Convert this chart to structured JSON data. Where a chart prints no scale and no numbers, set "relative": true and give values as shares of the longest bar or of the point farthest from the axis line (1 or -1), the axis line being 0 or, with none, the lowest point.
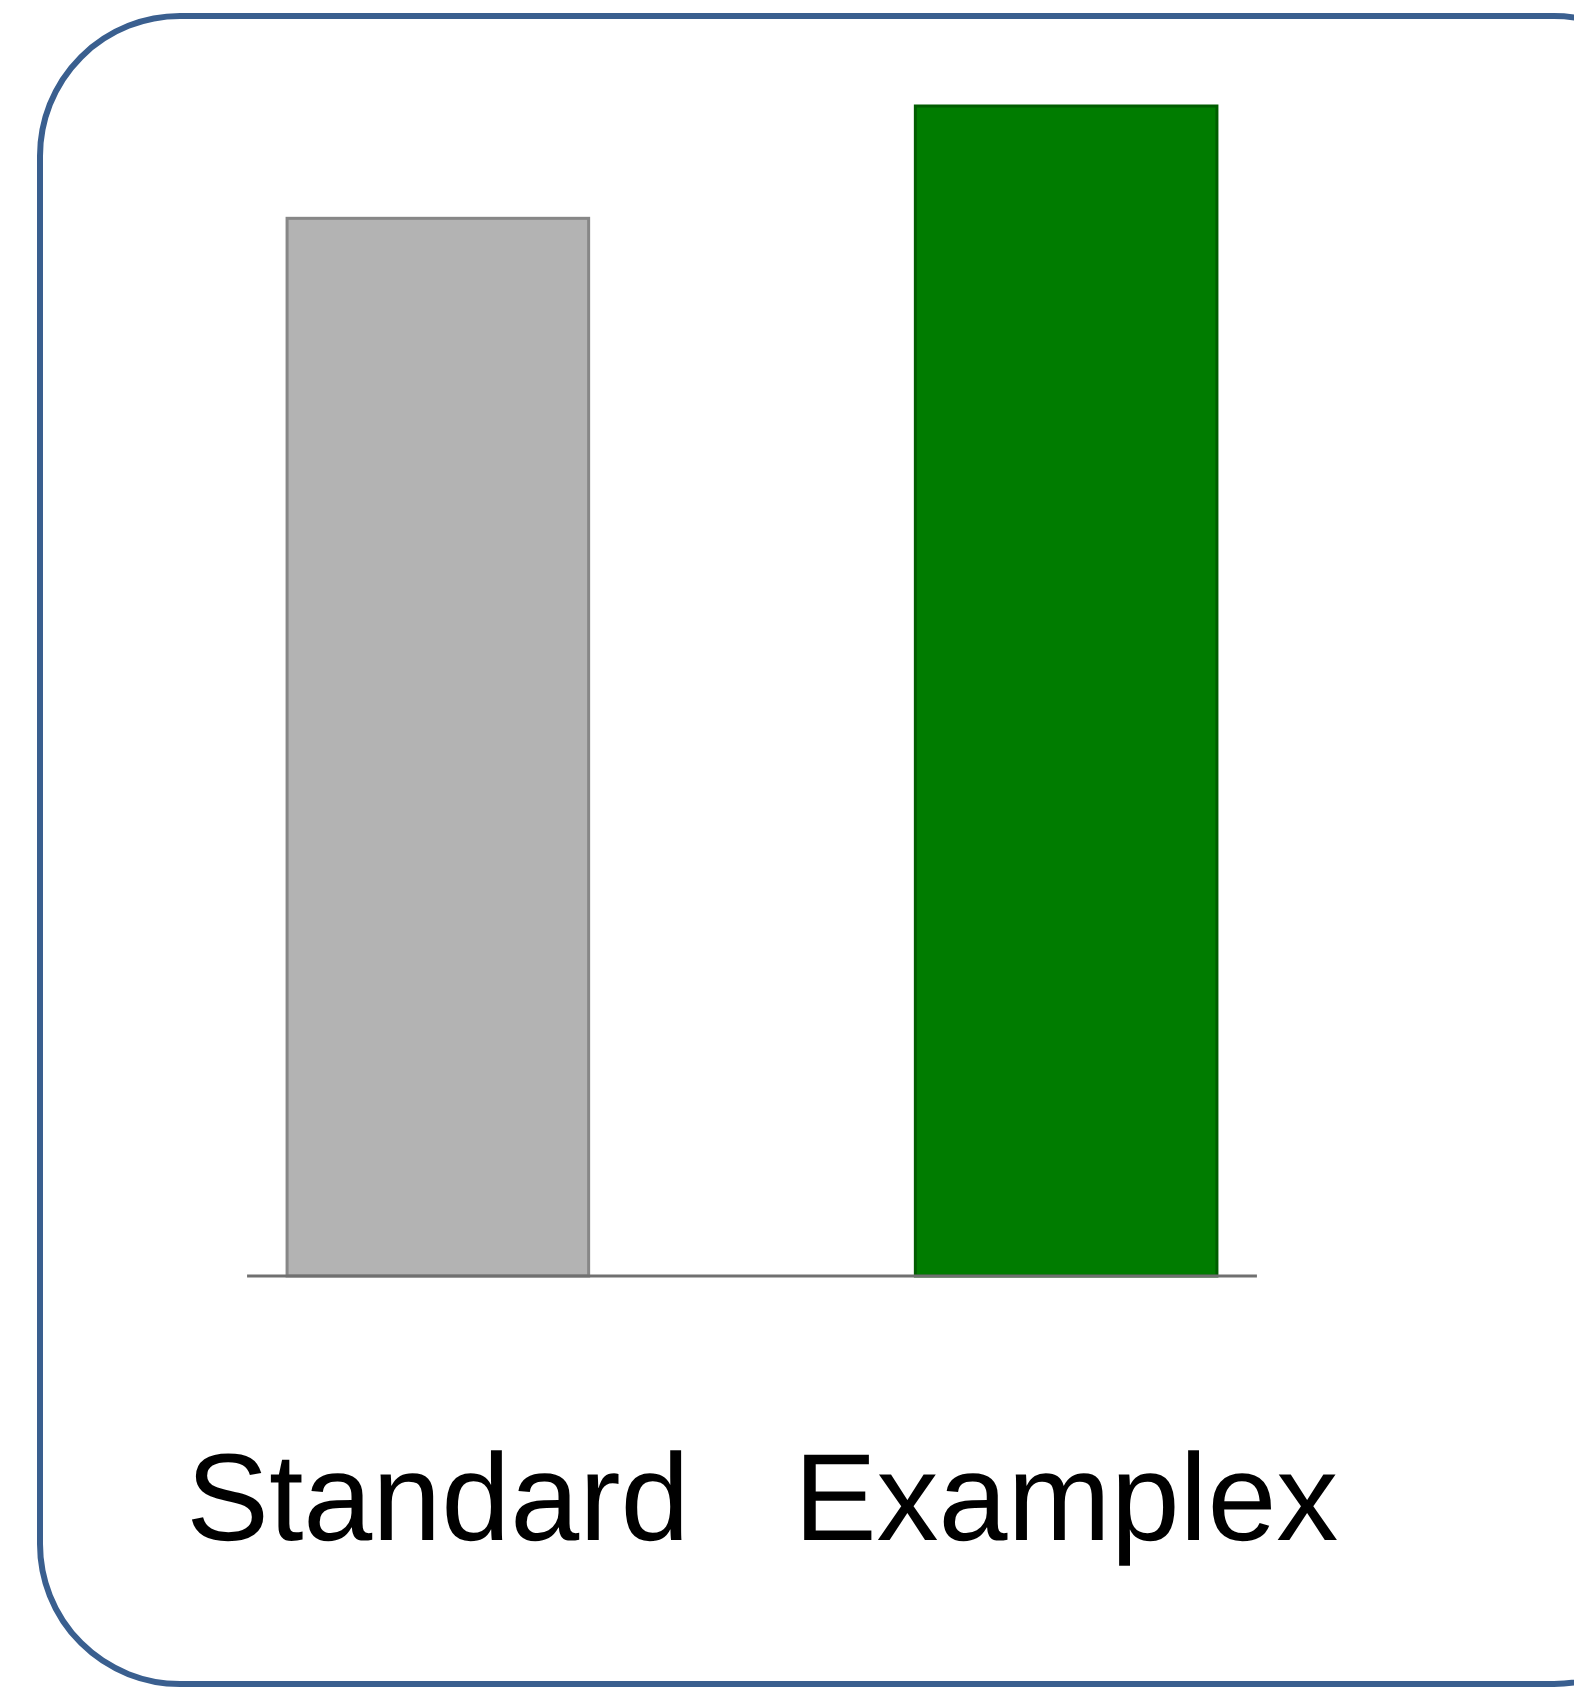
{
  "chart_data": {
    "type": "bar",
    "relative": true,
    "categories": [
      "Standard",
      "Examplex"
    ],
    "values": [
      0.904,
      1
    ],
    "colors": [
      "#b3b3b3",
      "#007c00"
    ]
  }
}
